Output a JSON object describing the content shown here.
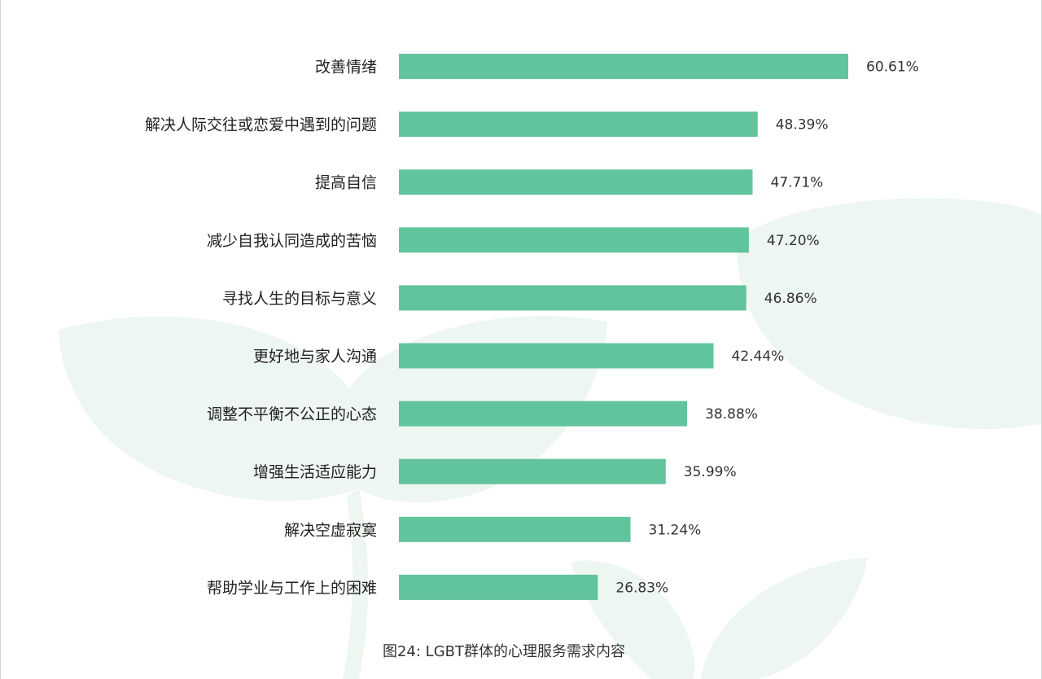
{
  "caption": "图24:  LGBT群体的心理服务需求内容",
  "colors": {
    "bar": "#62c49c",
    "leaf": "#edf6f0",
    "text": "#222222"
  },
  "chart_data": {
    "type": "bar",
    "orientation": "horizontal",
    "title": "图24:  LGBT群体的心理服务需求内容",
    "categories": [
      "改善情绪",
      "解决人际交往或恋爱中遇到的问题",
      "提高自信",
      "减少自我认同造成的苦恼",
      "寻找人生的目标与意义",
      "更好地与家人沟通",
      "调整不平衡不公正的心态",
      "增强生活适应能力",
      "解决空虚寂寞",
      "帮助学业与工作上的困难"
    ],
    "values": [
      60.61,
      48.39,
      47.71,
      47.2,
      46.86,
      42.44,
      38.88,
      35.99,
      31.24,
      26.83
    ],
    "value_labels": [
      "60.61%",
      "48.39%",
      "47.71%",
      "47.20%",
      "46.86%",
      "42.44%",
      "38.88%",
      "35.99%",
      "31.24%",
      "26.83%"
    ],
    "xlim": [
      0,
      60.61
    ],
    "grid": false,
    "legend": "none"
  }
}
